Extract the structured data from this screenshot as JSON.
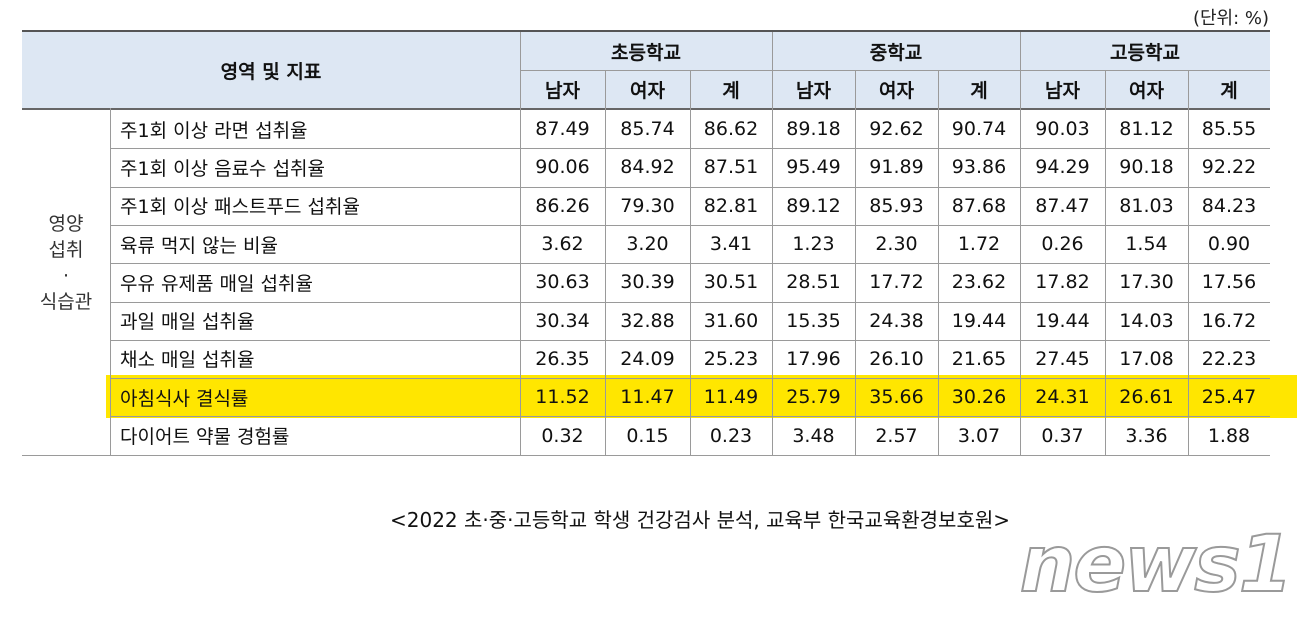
{
  "unit_note": "(단위: %)",
  "table": {
    "header": {
      "area": "영역 및 지표",
      "groups": [
        "초등학교",
        "중학교",
        "고등학교"
      ],
      "subheaders": [
        "남자",
        "여자",
        "계"
      ]
    },
    "group_label": [
      "영양",
      "섭취",
      "·",
      "식습관"
    ],
    "rows": [
      {
        "label": "주1회 이상 라면 섭취율",
        "values": [
          "87.49",
          "85.74",
          "86.62",
          "89.18",
          "92.62",
          "90.74",
          "90.03",
          "81.12",
          "85.55"
        ]
      },
      {
        "label": "주1회 이상 음료수 섭취율",
        "values": [
          "90.06",
          "84.92",
          "87.51",
          "95.49",
          "91.89",
          "93.86",
          "94.29",
          "90.18",
          "92.22"
        ]
      },
      {
        "label": "주1회 이상 패스트푸드 섭취율",
        "values": [
          "86.26",
          "79.30",
          "82.81",
          "89.12",
          "85.93",
          "87.68",
          "87.47",
          "81.03",
          "84.23"
        ]
      },
      {
        "label": "육류 먹지 않는 비율",
        "values": [
          "3.62",
          "3.20",
          "3.41",
          "1.23",
          "2.30",
          "1.72",
          "0.26",
          "1.54",
          "0.90"
        ]
      },
      {
        "label": "우유 유제품 매일 섭취율",
        "values": [
          "30.63",
          "30.39",
          "30.51",
          "28.51",
          "17.72",
          "23.62",
          "17.82",
          "17.30",
          "17.56"
        ]
      },
      {
        "label": "과일 매일 섭취율",
        "values": [
          "30.34",
          "32.88",
          "31.60",
          "15.35",
          "24.38",
          "19.44",
          "19.44",
          "14.03",
          "16.72"
        ]
      },
      {
        "label": "채소 매일 섭취율",
        "values": [
          "26.35",
          "24.09",
          "25.23",
          "17.96",
          "26.10",
          "21.65",
          "27.45",
          "17.08",
          "22.23"
        ]
      },
      {
        "label": "아침식사 결식률",
        "values": [
          "11.52",
          "11.47",
          "11.49",
          "25.79",
          "35.66",
          "30.26",
          "24.31",
          "26.61",
          "25.47"
        ]
      },
      {
        "label": "다이어트 약물 경험률",
        "values": [
          "0.32",
          "0.15",
          "0.23",
          "3.48",
          "2.57",
          "3.07",
          "0.37",
          "3.36",
          "1.88"
        ]
      }
    ],
    "highlight": {
      "row": 7,
      "color": "#ffe600"
    }
  },
  "source": "<2022 초·중·고등학교 학생 건강검사 분석, 교육부 한국교육환경보호원>",
  "watermark": "news1"
}
